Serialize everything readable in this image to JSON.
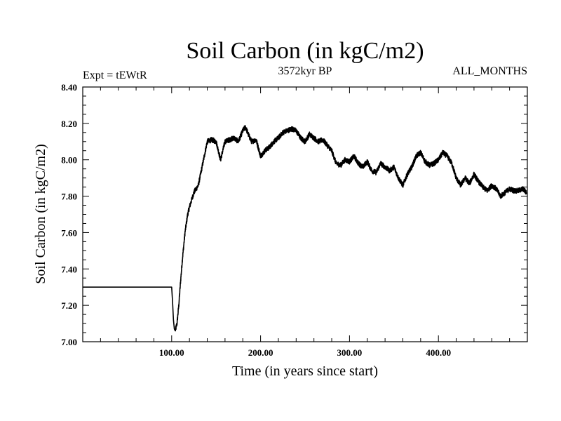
{
  "chart_data": {
    "type": "line",
    "title": "Soil Carbon (in kgC/m2)",
    "subtitle_left": "Expt = tEWtR",
    "subtitle_center": "3572kyr BP",
    "subtitle_right": "ALL_MONTHS",
    "xlabel": "Time (in years since start)",
    "ylabel": "Soil Carbon (in kgC/m2)",
    "xlim": [
      0,
      500
    ],
    "ylim": [
      7.0,
      8.4
    ],
    "x_ticks": [
      100,
      200,
      300,
      400
    ],
    "x_tick_labels": [
      "100.00",
      "200.00",
      "300.00",
      "400.00"
    ],
    "y_ticks": [
      7.0,
      7.2,
      7.4,
      7.6,
      7.8,
      8.0,
      8.2,
      8.4
    ],
    "y_tick_labels": [
      "7.00",
      "7.20",
      "7.40",
      "7.60",
      "7.80",
      "8.00",
      "8.20",
      "8.40"
    ],
    "grid": false,
    "legend": "none",
    "series": [
      {
        "name": "Soil Carbon",
        "color": "#000000",
        "x": [
          0,
          20,
          40,
          60,
          80,
          100,
          101,
          102,
          103,
          104,
          106,
          108,
          110,
          112,
          115,
          118,
          120,
          125,
          130,
          135,
          140,
          145,
          150,
          155,
          160,
          165,
          170,
          175,
          180,
          183,
          187,
          190,
          195,
          200,
          205,
          210,
          215,
          220,
          225,
          230,
          235,
          240,
          245,
          250,
          255,
          260,
          265,
          270,
          275,
          280,
          285,
          290,
          295,
          300,
          305,
          310,
          315,
          320,
          325,
          330,
          335,
          340,
          345,
          350,
          355,
          360,
          365,
          370,
          375,
          380,
          385,
          390,
          395,
          400,
          405,
          410,
          415,
          420,
          425,
          430,
          435,
          440,
          445,
          450,
          455,
          460,
          465,
          470,
          475,
          480,
          485,
          490,
          495,
          499
        ],
        "values": [
          7.3,
          7.3,
          7.3,
          7.3,
          7.3,
          7.3,
          7.22,
          7.12,
          7.07,
          7.06,
          7.1,
          7.2,
          7.33,
          7.45,
          7.6,
          7.7,
          7.74,
          7.82,
          7.86,
          7.98,
          8.1,
          8.11,
          8.1,
          8.0,
          8.1,
          8.11,
          8.12,
          8.1,
          8.16,
          8.18,
          8.13,
          8.1,
          8.11,
          8.02,
          8.05,
          8.07,
          8.1,
          8.12,
          8.15,
          8.16,
          8.17,
          8.16,
          8.12,
          8.1,
          8.14,
          8.12,
          8.1,
          8.11,
          8.08,
          8.05,
          7.98,
          7.97,
          8.0,
          7.99,
          8.02,
          7.98,
          7.96,
          7.99,
          7.94,
          7.93,
          7.98,
          7.96,
          7.94,
          7.96,
          7.9,
          7.86,
          7.92,
          7.96,
          8.02,
          8.04,
          7.99,
          7.97,
          7.98,
          8.0,
          8.04,
          8.02,
          7.98,
          7.9,
          7.86,
          7.9,
          7.87,
          7.92,
          7.88,
          7.85,
          7.83,
          7.86,
          7.84,
          7.8,
          7.82,
          7.84,
          7.83,
          7.83,
          7.84,
          7.82
        ]
      }
    ]
  }
}
